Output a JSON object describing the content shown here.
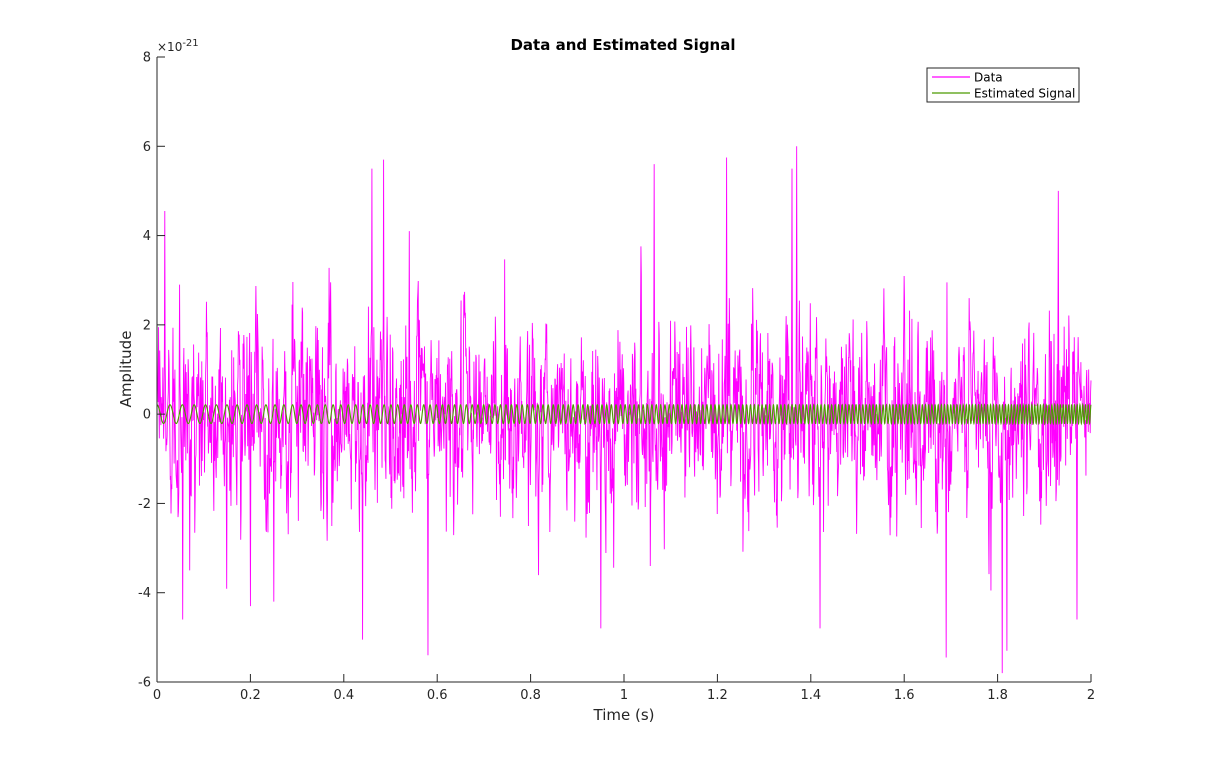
{
  "chart_data": {
    "type": "line",
    "title": "Data and Estimated Signal",
    "xlabel": "Time (s)",
    "ylabel": "Amplitude",
    "xlim": [
      0,
      2
    ],
    "ylim": [
      -6e-21,
      8e-21
    ],
    "x_ticks": [
      0,
      0.2,
      0.4,
      0.6,
      0.8,
      1,
      1.2,
      1.4,
      1.6,
      1.8,
      2
    ],
    "x_tick_labels": [
      "0",
      "0.2",
      "0.4",
      "0.6",
      "0.8",
      "1",
      "1.2",
      "1.4",
      "1.6",
      "1.8",
      "2"
    ],
    "y_tick_labels": [
      "-6",
      "-4",
      "-2",
      "0",
      "2",
      "4",
      "6",
      "8"
    ],
    "y_ticks_scaled": [
      -6,
      -4,
      -2,
      0,
      2,
      4,
      6,
      8
    ],
    "y_exponent_base": "×10",
    "y_exponent": "-21",
    "grid": false,
    "legend_position": "top-right",
    "series": [
      {
        "name": "Data",
        "color": "#ff00ff",
        "description_type": "noise",
        "amplitude_std": 1.8e-21,
        "peaks": [
          {
            "x": 0.017,
            "y": 4.55e-21
          },
          {
            "x": 0.048,
            "y": 2.9e-21
          },
          {
            "x": 0.055,
            "y": -4.6e-21
          },
          {
            "x": 0.07,
            "y": -3.5e-21
          },
          {
            "x": 0.2,
            "y": -4.3e-21
          },
          {
            "x": 0.25,
            "y": -4.2e-21
          },
          {
            "x": 0.46,
            "y": 5.5e-21
          },
          {
            "x": 0.485,
            "y": 5.7e-21
          },
          {
            "x": 0.44,
            "y": -5.05e-21
          },
          {
            "x": 0.58,
            "y": -5.4e-21
          },
          {
            "x": 0.54,
            "y": 4.1e-21
          },
          {
            "x": 0.95,
            "y": -4.8e-21
          },
          {
            "x": 1.065,
            "y": 5.6e-21
          },
          {
            "x": 1.22,
            "y": 5.75e-21
          },
          {
            "x": 1.37,
            "y": 6e-21
          },
          {
            "x": 1.36,
            "y": 5.5e-21
          },
          {
            "x": 1.42,
            "y": -4.8e-21
          },
          {
            "x": 1.69,
            "y": -5.45e-21
          },
          {
            "x": 1.81,
            "y": -5.8e-21
          },
          {
            "x": 1.82,
            "y": -5.3e-21
          },
          {
            "x": 1.93,
            "y": 5e-21
          },
          {
            "x": 1.97,
            "y": -4.6e-21
          }
        ]
      },
      {
        "name": "Estimated Signal",
        "color": "#4c9a00",
        "description_type": "chirp",
        "amplitude": 2.1e-22,
        "start_frequency_hz": 35,
        "end_frequency_hz": 170
      }
    ]
  }
}
